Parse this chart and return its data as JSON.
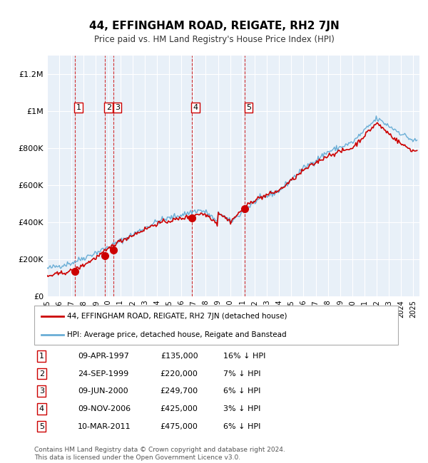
{
  "title": "44, EFFINGHAM ROAD, REIGATE, RH2 7JN",
  "subtitle": "Price paid vs. HM Land Registry's House Price Index (HPI)",
  "bg_color": "#dce9f5",
  "plot_bg_color": "#e8f0f8",
  "grid_color": "#ffffff",
  "hpi_line_color": "#6aaed6",
  "price_line_color": "#cc0000",
  "sale_marker_color": "#cc0000",
  "vline_color": "#cc0000",
  "transactions": [
    {
      "num": 1,
      "date_label": "09-APR-1997",
      "x": 1997.27,
      "price": 135000,
      "pct": "16% ↓ HPI"
    },
    {
      "num": 2,
      "date_label": "24-SEP-1999",
      "x": 1999.73,
      "price": 220000,
      "pct": "7% ↓ HPI"
    },
    {
      "num": 3,
      "date_label": "09-JUN-2000",
      "x": 2000.44,
      "price": 249700,
      "pct": "6% ↓ HPI"
    },
    {
      "num": 4,
      "date_label": "09-NOV-2006",
      "x": 2006.86,
      "price": 425000,
      "pct": "3% ↓ HPI"
    },
    {
      "num": 5,
      "date_label": "10-MAR-2011",
      "x": 2011.19,
      "price": 475000,
      "pct": "6% ↓ HPI"
    }
  ],
  "legend_entry1": "44, EFFINGHAM ROAD, REIGATE, RH2 7JN (detached house)",
  "legend_entry2": "HPI: Average price, detached house, Reigate and Banstead",
  "footer": "Contains HM Land Registry data © Crown copyright and database right 2024.\nThis data is licensed under the Open Government Licence v3.0.",
  "xmin": 1995.0,
  "xmax": 2025.5,
  "ymin": 0,
  "ymax": 1300000
}
